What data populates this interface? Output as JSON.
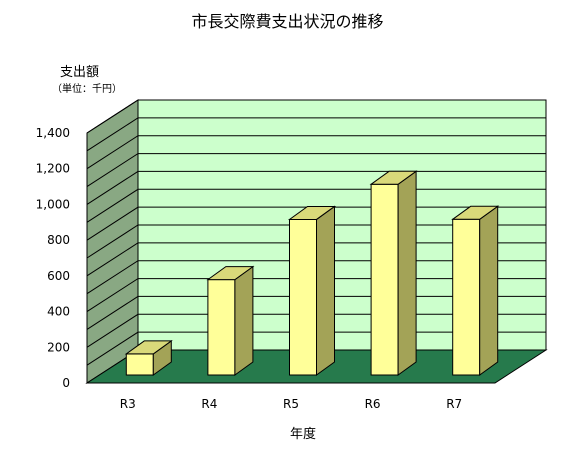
{
  "chart_data": {
    "type": "bar",
    "title": "市長交際費支出状況の推移",
    "ylabel": "支出額",
    "yunit": "（単位：千円）",
    "xlabel": "年度",
    "categories": [
      "R3",
      "R4",
      "R5",
      "R6",
      "R7"
    ],
    "values": [
      118,
      534,
      871,
      1068,
      872
    ],
    "ylim": [
      0,
      1400
    ],
    "yticks": [
      0,
      200,
      400,
      600,
      800,
      1000,
      1200,
      1400
    ],
    "ytick_labels": [
      "0",
      "200",
      "400",
      "600",
      "800",
      "1,000",
      "1,200",
      "1,400"
    ],
    "grid": true,
    "legend": "none",
    "colors": {
      "bar_front": "#ffff99",
      "bar_side": "#a3a357",
      "bar_top": "#d9d97a",
      "wall_back": "#ccffcc",
      "wall_side": "#89a883",
      "floor": "#267a4c",
      "gridline": "#000000"
    }
  }
}
